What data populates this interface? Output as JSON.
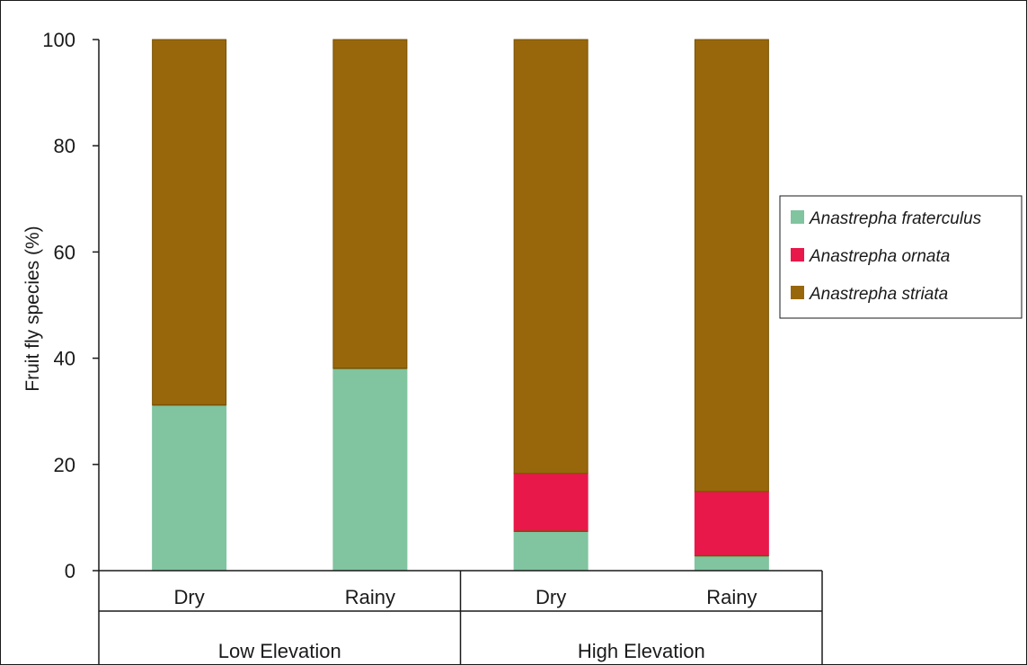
{
  "chart_data": {
    "type": "bar",
    "stacked": true,
    "title": "",
    "xlabel": "",
    "ylabel": "Fruit fly species (%)",
    "ylim": [
      0,
      100
    ],
    "yticks": [
      "0",
      "20",
      "40",
      "60",
      "80",
      "100"
    ],
    "grid": false,
    "legend_position": "right",
    "categories": [
      "Dry",
      "Rainy",
      "Dry",
      "Rainy"
    ],
    "category_groups": [
      {
        "label": "Low Elevation",
        "members": [
          0,
          1
        ]
      },
      {
        "label": "High Elevation",
        "members": [
          2,
          3
        ]
      }
    ],
    "series": [
      {
        "name": "Anastrepha fraterculus",
        "color": "#80c4a0",
        "values": [
          31.2,
          38.1,
          7.4,
          2.8
        ]
      },
      {
        "name": "Anastrepha ornata",
        "color": "#e8184a",
        "values": [
          0,
          0,
          10.9,
          12.1
        ]
      },
      {
        "name": "Anastrepha striata",
        "color": "#98670c",
        "values": [
          68.8,
          61.9,
          81.7,
          85.1
        ]
      }
    ]
  }
}
